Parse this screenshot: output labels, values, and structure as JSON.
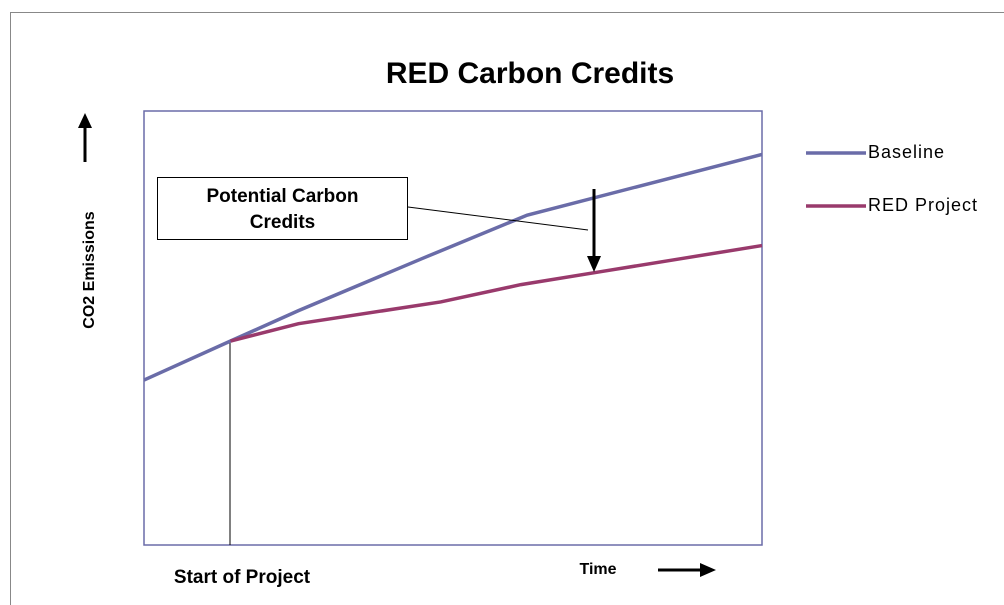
{
  "chart_data": {
    "type": "line",
    "title": "RED Carbon Credits",
    "x_label": "Time",
    "y_label": "CO2 Emissions",
    "annotations": [
      "Potential Carbon Credits",
      "Start of Project"
    ],
    "xlim": [
      0,
      100
    ],
    "ylim": [
      0,
      100
    ],
    "series": [
      {
        "name": "Baseline",
        "color": "#6a6ca8",
        "x": [
          0,
          14,
          25,
          45,
          62,
          100
        ],
        "values": [
          38,
          47,
          54,
          66,
          76,
          90
        ]
      },
      {
        "name": "RED Project",
        "color": "#993a6c",
        "x": [
          14,
          25,
          48,
          61,
          74,
          87,
          100
        ],
        "values": [
          47,
          51,
          56,
          60,
          63,
          66,
          69
        ]
      }
    ]
  }
}
